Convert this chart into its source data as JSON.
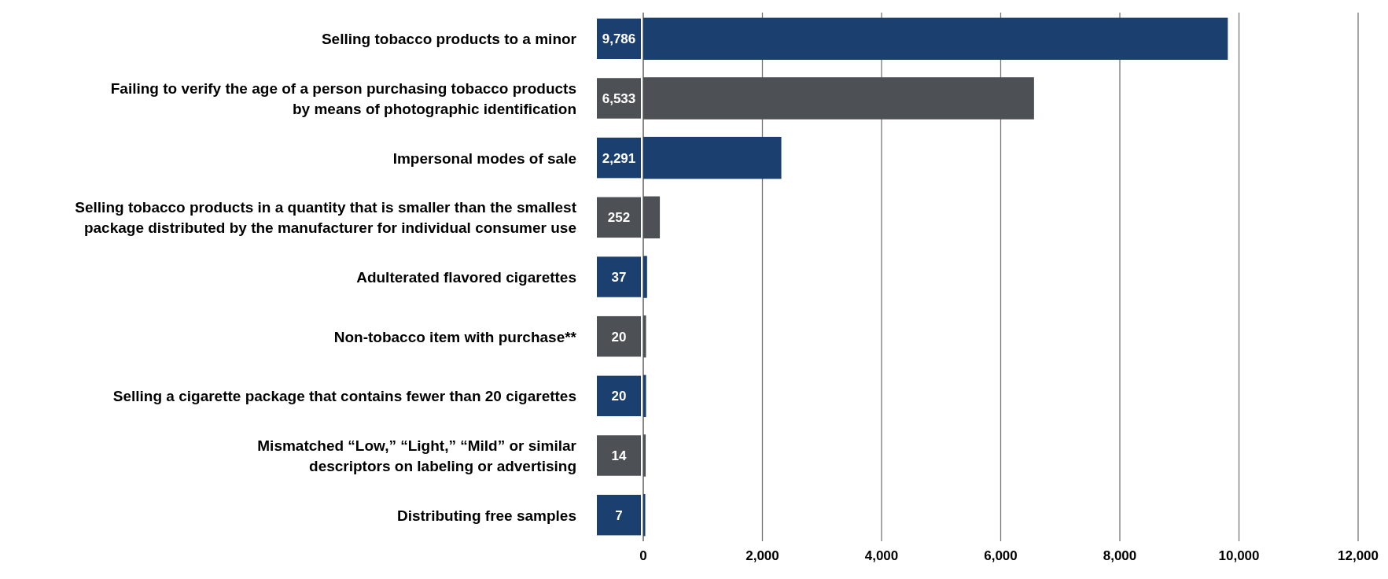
{
  "chart_data": {
    "type": "bar",
    "orientation": "horizontal",
    "categories": [
      "Selling tobacco products to a minor",
      "Failing to verify the age of a person purchasing tobacco products\nby means of photographic identification",
      "Impersonal modes of sale",
      "Selling tobacco products in a quantity that is smaller than the smallest\npackage distributed by the manufacturer for individual consumer use",
      "Adulterated flavored cigarettes",
      "Non-tobacco item with purchase**",
      "Selling a cigarette package that contains fewer than 20 cigarettes",
      "Mismatched “Low,” “Light,” “Mild” or similar\ndescriptors on labeling or advertising",
      "Distributing free samples"
    ],
    "values": [
      9786,
      6533,
      2291,
      252,
      37,
      20,
      20,
      14,
      7
    ],
    "colors": [
      "#1b3f6f",
      "#4d5054",
      "#1b3f6f",
      "#4d5054",
      "#1b3f6f",
      "#4d5054",
      "#1b3f6f",
      "#4d5054",
      "#1b3f6f"
    ],
    "xlim": [
      0,
      12000
    ],
    "xticks": [
      0,
      {
        "value": 2000,
        "label": "2,000"
      },
      {
        "value": 4000,
        "label": "4,000"
      },
      {
        "value": 6000,
        "label": "6,000"
      },
      {
        "value": 8000,
        "label": "8,000"
      },
      {
        "value": 10000,
        "label": "10,000"
      },
      {
        "value": 12000,
        "label": "12,000"
      }
    ],
    "value_labels": [
      "9,786",
      "6,533",
      "2,291",
      "252",
      "37",
      "20",
      "20",
      "14",
      "7"
    ],
    "grid": "x"
  }
}
